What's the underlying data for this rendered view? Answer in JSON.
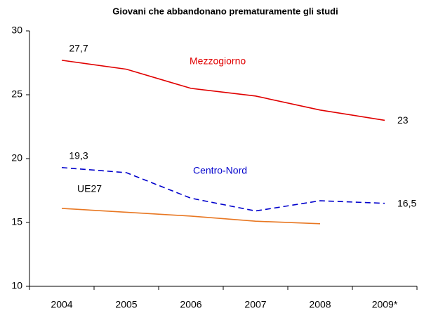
{
  "chart_data": {
    "type": "line",
    "title": "Giovani che abbandonano prematuramente gli studi",
    "categories": [
      "2004",
      "2005",
      "2006",
      "2007",
      "2008",
      "2009*"
    ],
    "ylim": [
      10,
      30
    ],
    "yticks": [
      10,
      15,
      20,
      25,
      30
    ],
    "series": [
      {
        "name": "Mezzogiorno",
        "color": "#e00000",
        "dashed": false,
        "values": [
          27.7,
          27.0,
          25.5,
          24.9,
          23.8,
          23.0
        ],
        "value_labels": [
          "27,7",
          null,
          null,
          null,
          null,
          "23"
        ]
      },
      {
        "name": "Centro-Nord",
        "color": "#0000cc",
        "dashed": true,
        "values": [
          19.3,
          18.9,
          16.9,
          15.9,
          16.7,
          16.5
        ],
        "value_labels": [
          "19,3",
          null,
          null,
          null,
          null,
          "16,5"
        ]
      },
      {
        "name": "UE27",
        "color": "#e87722",
        "dashed": false,
        "values": [
          16.1,
          15.8,
          15.5,
          15.1,
          14.9,
          null
        ]
      }
    ]
  }
}
